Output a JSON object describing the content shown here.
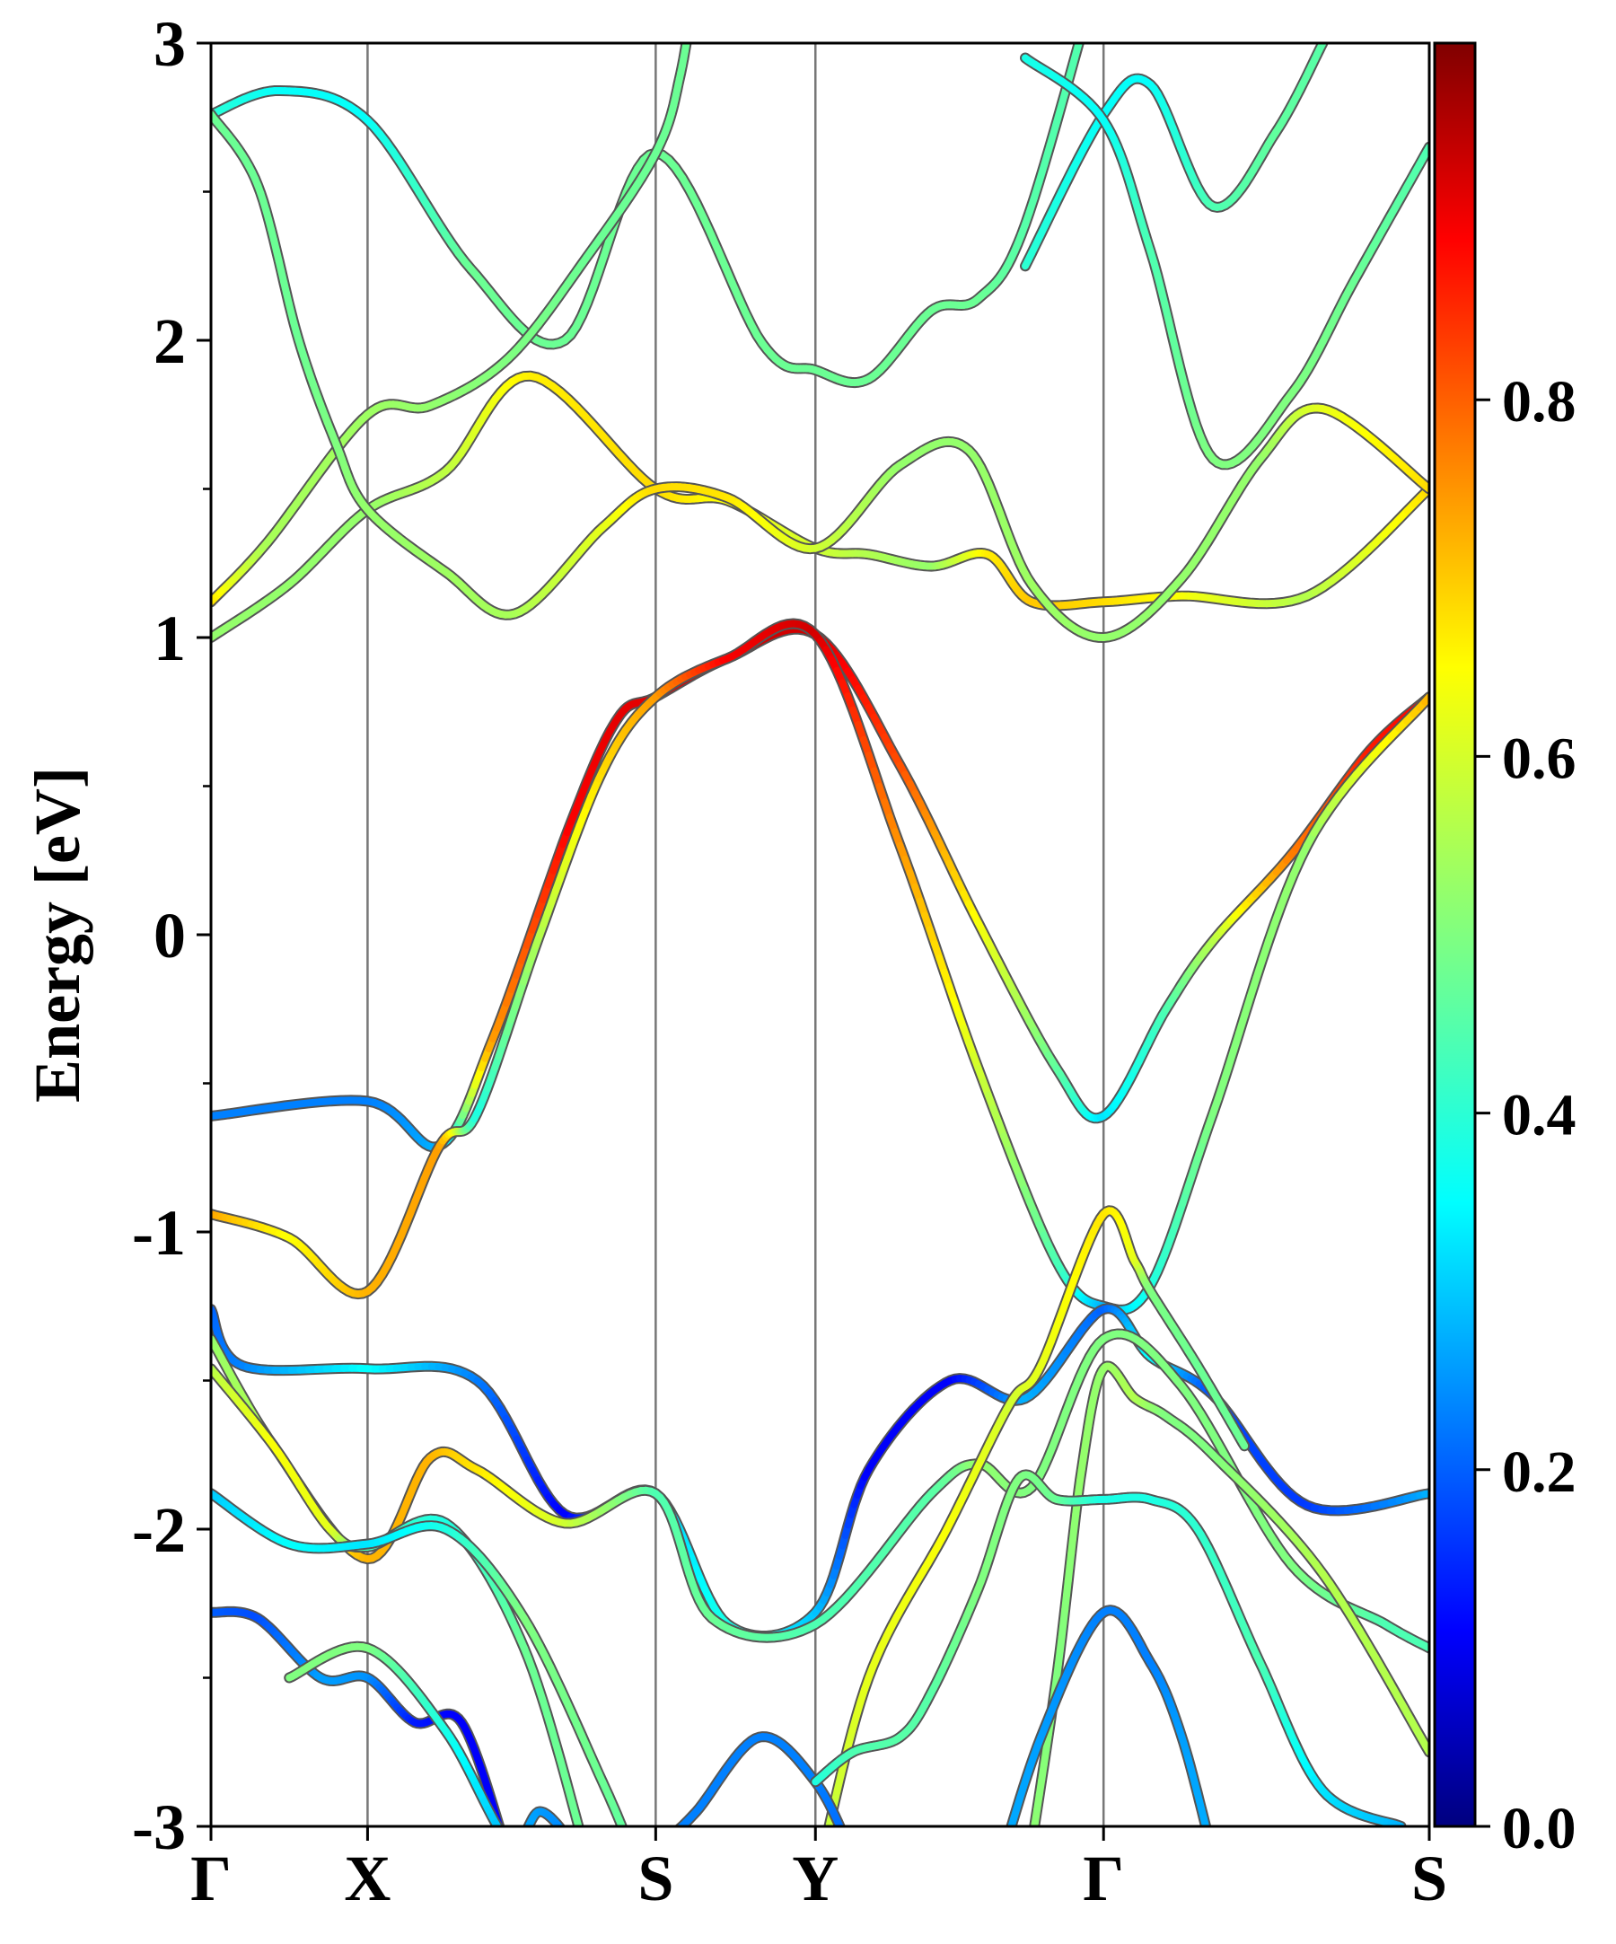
{
  "chart_data": {
    "type": "line",
    "title": "",
    "xlabel": "",
    "ylabel": "Energy [eV]",
    "ylim": [
      -3,
      3
    ],
    "y_ticks": [
      -3,
      -2,
      -1,
      0,
      1,
      2,
      3
    ],
    "y_tick_labels": [
      "-3",
      "-2",
      "-1",
      "0",
      "1",
      "2",
      "3"
    ],
    "y_minor_step": 0.5,
    "k_points": [
      {
        "label": "Γ",
        "x": 0.0
      },
      {
        "label": "X",
        "x": 0.5
      },
      {
        "label": "S",
        "x": 1.42
      },
      {
        "label": "Y",
        "x": 1.93
      },
      {
        "label": "Γ",
        "x": 2.85
      },
      {
        "label": "S",
        "x": 3.89
      }
    ],
    "colorbar": {
      "colormap": "jet",
      "range": [
        0.0,
        1.0
      ],
      "ticks": [
        0.0,
        0.2,
        0.4,
        0.6,
        0.8
      ],
      "tick_labels": [
        "0.0",
        "0.2",
        "0.4",
        "0.6",
        "0.8"
      ]
    },
    "grid": false,
    "legend": "none",
    "series": [
      {
        "points": [
          [
            0.0,
            2.76,
            0.42
          ],
          [
            0.22,
            2.84,
            0.38
          ],
          [
            0.5,
            2.74,
            0.38
          ],
          [
            0.83,
            2.24,
            0.48
          ],
          [
            1.13,
            2.0,
            0.48
          ],
          [
            1.42,
            2.63,
            0.48
          ],
          [
            1.76,
            1.99,
            0.48
          ],
          [
            1.93,
            1.9,
            0.48
          ],
          [
            2.1,
            1.87,
            0.48
          ],
          [
            2.3,
            2.1,
            0.48
          ],
          [
            2.45,
            2.14,
            0.48
          ],
          [
            2.6,
            2.39,
            0.46
          ],
          [
            2.85,
            3.3,
            0.45
          ]
        ]
      },
      {
        "points": [
          [
            0.0,
            1.12,
            0.66
          ],
          [
            0.18,
            1.32,
            0.54
          ],
          [
            0.5,
            1.75,
            0.53
          ],
          [
            0.7,
            1.78,
            0.52
          ],
          [
            0.95,
            1.94,
            0.5
          ],
          [
            1.2,
            2.28,
            0.48
          ],
          [
            1.42,
            2.63,
            0.48
          ],
          [
            1.5,
            2.9,
            0.48
          ],
          [
            1.56,
            3.3,
            0.48
          ]
        ]
      },
      {
        "points": [
          [
            0.0,
            1.0,
            0.52
          ],
          [
            0.25,
            1.18,
            0.52
          ],
          [
            0.5,
            1.43,
            0.52
          ],
          [
            0.75,
            1.56,
            0.56
          ],
          [
            1.02,
            1.88,
            0.64
          ],
          [
            1.42,
            1.5,
            0.66
          ],
          [
            1.65,
            1.46,
            0.62
          ],
          [
            1.93,
            1.3,
            0.58
          ],
          [
            2.1,
            1.28,
            0.55
          ],
          [
            2.3,
            1.24,
            0.52
          ],
          [
            2.48,
            1.28,
            0.64
          ],
          [
            2.62,
            1.12,
            0.68
          ],
          [
            2.85,
            1.12,
            0.66
          ],
          [
            3.1,
            1.14,
            0.62
          ],
          [
            3.5,
            1.14,
            0.55
          ],
          [
            3.89,
            1.5,
            0.66
          ]
        ]
      },
      {
        "points": [
          [
            0.0,
            2.76,
            0.48
          ],
          [
            0.15,
            2.52,
            0.48
          ],
          [
            0.28,
            2.0,
            0.48
          ],
          [
            0.4,
            1.65,
            0.5
          ],
          [
            0.5,
            1.43,
            0.52
          ],
          [
            0.75,
            1.22,
            0.53
          ],
          [
            0.97,
            1.08,
            0.54
          ],
          [
            1.25,
            1.37,
            0.6
          ],
          [
            1.42,
            1.5,
            0.66
          ],
          [
            1.65,
            1.47,
            0.65
          ],
          [
            1.93,
            1.3,
            0.58
          ],
          [
            2.2,
            1.58,
            0.52
          ],
          [
            2.42,
            1.63,
            0.52
          ],
          [
            2.62,
            1.18,
            0.53
          ],
          [
            2.85,
            1.0,
            0.52
          ],
          [
            3.1,
            1.2,
            0.52
          ],
          [
            3.35,
            1.6,
            0.52
          ],
          [
            3.55,
            1.77,
            0.6
          ],
          [
            3.89,
            1.5,
            0.66
          ]
        ]
      },
      {
        "points": [
          [
            2.6,
            2.25,
            0.42
          ],
          [
            2.85,
            2.76,
            0.38
          ],
          [
            3.0,
            2.86,
            0.38
          ],
          [
            3.2,
            2.45,
            0.45
          ],
          [
            3.4,
            2.7,
            0.47
          ],
          [
            3.55,
            3.0,
            0.46
          ]
        ]
      },
      {
        "points": [
          [
            2.6,
            2.95,
            0.4
          ],
          [
            2.85,
            2.74,
            0.38
          ],
          [
            3.0,
            2.3,
            0.45
          ],
          [
            3.2,
            1.6,
            0.5
          ],
          [
            3.45,
            1.82,
            0.5
          ],
          [
            3.65,
            2.2,
            0.48
          ],
          [
            3.89,
            2.65,
            0.45
          ]
        ]
      },
      {
        "points": [
          [
            0.0,
            -0.61,
            0.25
          ],
          [
            0.5,
            -0.56,
            0.25
          ],
          [
            0.73,
            -0.71,
            0.3
          ],
          [
            0.9,
            -0.35,
            0.72
          ],
          [
            1.15,
            0.38,
            0.88
          ],
          [
            1.3,
            0.73,
            0.9
          ],
          [
            1.42,
            0.8,
            0.9
          ],
          [
            1.65,
            0.93,
            0.92
          ],
          [
            1.93,
            1.01,
            0.92
          ],
          [
            2.2,
            0.57,
            0.8
          ],
          [
            2.45,
            0.04,
            0.62
          ],
          [
            2.7,
            -0.45,
            0.47
          ],
          [
            2.85,
            -0.61,
            0.35
          ],
          [
            3.05,
            -0.25,
            0.45
          ],
          [
            3.2,
            -0.02,
            0.55
          ],
          [
            3.45,
            0.27,
            0.75
          ],
          [
            3.7,
            0.62,
            0.85
          ],
          [
            3.89,
            0.8,
            0.88
          ]
        ]
      },
      {
        "points": [
          [
            0.0,
            -0.94,
            0.72
          ],
          [
            0.25,
            -1.02,
            0.62
          ],
          [
            0.5,
            -1.2,
            0.7
          ],
          [
            0.73,
            -0.71,
            0.72
          ],
          [
            0.85,
            -0.6,
            0.4
          ],
          [
            1.05,
            0.0,
            0.55
          ],
          [
            1.25,
            0.55,
            0.66
          ],
          [
            1.42,
            0.8,
            0.72
          ],
          [
            1.65,
            0.93,
            0.88
          ],
          [
            1.93,
            1.01,
            0.92
          ],
          [
            2.2,
            0.3,
            0.73
          ],
          [
            2.45,
            -0.45,
            0.58
          ],
          [
            2.7,
            -1.1,
            0.45
          ],
          [
            2.85,
            -1.25,
            0.3
          ],
          [
            3.0,
            -1.18,
            0.4
          ],
          [
            3.2,
            -0.6,
            0.5
          ],
          [
            3.5,
            0.3,
            0.52
          ],
          [
            3.89,
            0.8,
            0.7
          ]
        ]
      },
      {
        "points": [
          [
            0.0,
            -1.26,
            0.22
          ],
          [
            0.1,
            -1.45,
            0.25
          ],
          [
            0.5,
            -1.46,
            0.38
          ],
          [
            0.85,
            -1.5,
            0.25
          ],
          [
            1.13,
            -1.95,
            0.12
          ],
          [
            1.42,
            -1.88,
            0.32
          ],
          [
            1.65,
            -2.32,
            0.4
          ],
          [
            1.93,
            -2.28,
            0.32
          ],
          [
            2.1,
            -1.8,
            0.12
          ],
          [
            2.36,
            -1.5,
            0.12
          ],
          [
            2.6,
            -1.56,
            0.3
          ],
          [
            2.85,
            -1.26,
            0.22
          ],
          [
            3.0,
            -1.42,
            0.38
          ],
          [
            3.2,
            -1.55,
            0.2
          ],
          [
            3.5,
            -1.92,
            0.18
          ],
          [
            3.89,
            -1.88,
            0.3
          ]
        ]
      },
      {
        "points": [
          [
            0.0,
            -1.36,
            0.52
          ],
          [
            0.2,
            -1.72,
            0.55
          ],
          [
            0.5,
            -2.1,
            0.7
          ],
          [
            0.7,
            -1.76,
            0.7
          ],
          [
            0.85,
            -1.8,
            0.65
          ],
          [
            1.13,
            -1.98,
            0.58
          ],
          [
            1.42,
            -1.88,
            0.45
          ],
          [
            1.6,
            -2.3,
            0.48
          ],
          [
            1.93,
            -2.32,
            0.45
          ],
          [
            2.3,
            -1.88,
            0.46
          ],
          [
            2.45,
            -1.78,
            0.52
          ],
          [
            2.62,
            -1.86,
            0.5
          ],
          [
            2.85,
            -1.36,
            0.5
          ],
          [
            3.1,
            -1.52,
            0.5
          ],
          [
            3.45,
            -2.12,
            0.5
          ],
          [
            3.75,
            -2.32,
            0.45
          ],
          [
            3.89,
            -2.4,
            0.45
          ]
        ]
      },
      {
        "points": [
          [
            0.0,
            -1.46,
            0.55
          ],
          [
            0.2,
            -1.72,
            0.62
          ],
          [
            0.38,
            -2.0,
            0.6
          ],
          [
            0.5,
            -2.06,
            0.45
          ],
          [
            0.75,
            -1.98,
            0.4
          ],
          [
            1.0,
            -2.4,
            0.48
          ],
          [
            1.2,
            -3.1,
            0.48
          ]
        ]
      },
      {
        "points": [
          [
            1.93,
            -3.2,
            0.55
          ],
          [
            2.1,
            -2.5,
            0.6
          ],
          [
            2.35,
            -2.0,
            0.62
          ],
          [
            2.55,
            -1.58,
            0.58
          ],
          [
            2.65,
            -1.45,
            0.6
          ],
          [
            2.85,
            -0.94,
            0.65
          ],
          [
            2.95,
            -1.1,
            0.6
          ],
          [
            3.0,
            -1.2,
            0.5
          ],
          [
            3.15,
            -1.45,
            0.48
          ],
          [
            3.3,
            -1.72,
            0.48
          ]
        ]
      },
      {
        "points": [
          [
            2.6,
            -3.2,
            0.52
          ],
          [
            2.7,
            -2.5,
            0.5
          ],
          [
            2.78,
            -1.8,
            0.52
          ],
          [
            2.85,
            -1.46,
            0.52
          ],
          [
            2.95,
            -1.56,
            0.55
          ],
          [
            3.05,
            -1.62,
            0.5
          ],
          [
            3.2,
            -1.75,
            0.5
          ],
          [
            3.55,
            -2.15,
            0.55
          ],
          [
            3.89,
            -2.75,
            0.55
          ]
        ]
      },
      {
        "points": [
          [
            0.0,
            -1.88,
            0.32
          ],
          [
            0.25,
            -2.05,
            0.38
          ],
          [
            0.5,
            -2.05,
            0.35
          ],
          [
            0.75,
            -2.0,
            0.4
          ],
          [
            1.0,
            -2.3,
            0.5
          ],
          [
            1.25,
            -2.85,
            0.48
          ],
          [
            1.35,
            -3.1,
            0.46
          ]
        ]
      },
      {
        "points": [
          [
            0.0,
            -2.28,
            0.22
          ],
          [
            0.15,
            -2.3,
            0.2
          ],
          [
            0.35,
            -2.5,
            0.28
          ],
          [
            0.5,
            -2.5,
            0.27
          ],
          [
            0.65,
            -2.65,
            0.15
          ],
          [
            0.8,
            -2.65,
            0.12
          ],
          [
            0.95,
            -3.1,
            0.12
          ]
        ]
      },
      {
        "points": [
          [
            0.25,
            -2.5,
            0.5
          ],
          [
            0.5,
            -2.4,
            0.5
          ],
          [
            0.75,
            -2.68,
            0.4
          ],
          [
            0.95,
            -3.05,
            0.3
          ],
          [
            1.05,
            -2.95,
            0.28
          ],
          [
            1.15,
            -3.05,
            0.25
          ]
        ]
      },
      {
        "points": [
          [
            1.45,
            -3.05,
            0.25
          ],
          [
            1.55,
            -2.95,
            0.25
          ],
          [
            1.75,
            -2.7,
            0.25
          ],
          [
            1.93,
            -2.85,
            0.25
          ],
          [
            2.05,
            -3.1,
            0.22
          ]
        ]
      },
      {
        "points": [
          [
            1.93,
            -2.85,
            0.4
          ],
          [
            2.05,
            -2.75,
            0.45
          ],
          [
            2.2,
            -2.7,
            0.46
          ],
          [
            2.3,
            -2.55,
            0.46
          ],
          [
            2.45,
            -2.2,
            0.5
          ],
          [
            2.58,
            -1.83,
            0.5
          ],
          [
            2.7,
            -1.9,
            0.48
          ],
          [
            2.85,
            -1.9,
            0.4
          ],
          [
            3.0,
            -1.9,
            0.4
          ],
          [
            3.15,
            -2.0,
            0.42
          ],
          [
            3.35,
            -2.45,
            0.45
          ],
          [
            3.55,
            -2.88,
            0.35
          ],
          [
            3.8,
            -3.0,
            0.3
          ]
        ]
      },
      {
        "points": [
          [
            2.5,
            -3.2,
            0.3
          ],
          [
            2.65,
            -2.7,
            0.28
          ],
          [
            2.85,
            -2.28,
            0.25
          ],
          [
            3.0,
            -2.45,
            0.25
          ],
          [
            3.1,
            -2.7,
            0.28
          ],
          [
            3.2,
            -3.1,
            0.3
          ]
        ]
      }
    ]
  }
}
